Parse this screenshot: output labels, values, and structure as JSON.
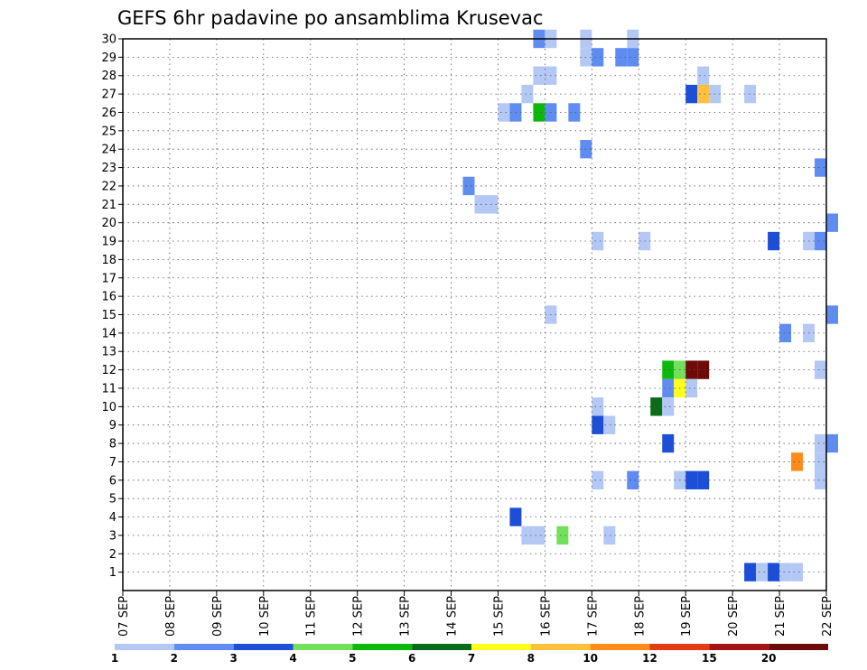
{
  "chart_data": {
    "type": "heatmap",
    "title": "GEFS 6hr padavine po ansamblima Krusevac",
    "xlabel": "",
    "ylabel": "",
    "x_tick_labels": [
      "07 SEP",
      "08 SEP",
      "09 SEP",
      "10 SEP",
      "11 SEP",
      "12 SEP",
      "13 SEP",
      "14 SEP",
      "15 SEP",
      "16 SEP",
      "17 SEP",
      "18 SEP",
      "19 SEP",
      "20 SEP",
      "21 SEP",
      "22 SEP"
    ],
    "y_tick_labels": [
      "1",
      "2",
      "3",
      "4",
      "5",
      "6",
      "7",
      "8",
      "9",
      "10",
      "11",
      "12",
      "13",
      "14",
      "15",
      "16",
      "17",
      "18",
      "19",
      "20",
      "21",
      "22",
      "23",
      "24",
      "25",
      "26",
      "27",
      "28",
      "29",
      "30"
    ],
    "x_range_days": [
      0,
      15
    ],
    "y_range": [
      0,
      30
    ],
    "grid": true,
    "colorbar": {
      "labels": [
        "1",
        "2",
        "3",
        "4",
        "5",
        "6",
        "7",
        "8",
        "10",
        "12",
        "15",
        "20"
      ],
      "colors": [
        "#b4c8f5",
        "#5f8cf0",
        "#1c4ed8",
        "#72e05a",
        "#0bb80b",
        "#0a6b18",
        "#ffff19",
        "#ffc03c",
        "#ff8c1a",
        "#e63c14",
        "#a51414",
        "#6e0a0a"
      ]
    },
    "units_note": "x in days from 07 SEP 00Z (6-hour steps = 0.25), y = ensemble member, c = color class index (0 = 1..2 mm)",
    "cells": [
      {
        "x": 8.75,
        "y": 30,
        "c": 1
      },
      {
        "x": 9.0,
        "y": 30,
        "c": 0
      },
      {
        "x": 9.75,
        "y": 30,
        "c": 0
      },
      {
        "x": 10.75,
        "y": 30,
        "c": 0
      },
      {
        "x": 9.75,
        "y": 29,
        "c": 0
      },
      {
        "x": 10.0,
        "y": 29,
        "c": 1
      },
      {
        "x": 10.5,
        "y": 29,
        "c": 1
      },
      {
        "x": 10.75,
        "y": 29,
        "c": 1
      },
      {
        "x": 8.75,
        "y": 28,
        "c": 0
      },
      {
        "x": 9.0,
        "y": 28,
        "c": 0
      },
      {
        "x": 12.25,
        "y": 28,
        "c": 0
      },
      {
        "x": 8.5,
        "y": 27,
        "c": 0
      },
      {
        "x": 12.0,
        "y": 27,
        "c": 2
      },
      {
        "x": 12.25,
        "y": 27,
        "c": 7
      },
      {
        "x": 12.5,
        "y": 27,
        "c": 0
      },
      {
        "x": 13.25,
        "y": 27,
        "c": 0
      },
      {
        "x": 8.0,
        "y": 26,
        "c": 0
      },
      {
        "x": 8.25,
        "y": 26,
        "c": 1
      },
      {
        "x": 8.75,
        "y": 26,
        "c": 4
      },
      {
        "x": 9.0,
        "y": 26,
        "c": 1
      },
      {
        "x": 9.5,
        "y": 26,
        "c": 1
      },
      {
        "x": 9.75,
        "y": 24,
        "c": 1
      },
      {
        "x": 14.75,
        "y": 23,
        "c": 1
      },
      {
        "x": 7.25,
        "y": 22,
        "c": 1
      },
      {
        "x": 7.5,
        "y": 21,
        "c": 0
      },
      {
        "x": 7.75,
        "y": 21,
        "c": 0
      },
      {
        "x": 15.0,
        "y": 20,
        "c": 1
      },
      {
        "x": 10.0,
        "y": 19,
        "c": 0
      },
      {
        "x": 11.0,
        "y": 19,
        "c": 0
      },
      {
        "x": 13.75,
        "y": 19,
        "c": 2
      },
      {
        "x": 14.5,
        "y": 19,
        "c": 0
      },
      {
        "x": 14.75,
        "y": 19,
        "c": 1
      },
      {
        "x": 9.0,
        "y": 15,
        "c": 0
      },
      {
        "x": 15.0,
        "y": 15,
        "c": 1
      },
      {
        "x": 14.0,
        "y": 14,
        "c": 1
      },
      {
        "x": 14.5,
        "y": 14,
        "c": 0
      },
      {
        "x": 11.5,
        "y": 12,
        "c": 4
      },
      {
        "x": 11.75,
        "y": 12,
        "c": 3
      },
      {
        "x": 12.0,
        "y": 12,
        "c": 11
      },
      {
        "x": 12.25,
        "y": 12,
        "c": 11
      },
      {
        "x": 14.75,
        "y": 12,
        "c": 0
      },
      {
        "x": 11.5,
        "y": 11,
        "c": 1
      },
      {
        "x": 11.75,
        "y": 11,
        "c": 6
      },
      {
        "x": 12.0,
        "y": 11,
        "c": 0
      },
      {
        "x": 10.0,
        "y": 10,
        "c": 0
      },
      {
        "x": 11.25,
        "y": 10,
        "c": 5
      },
      {
        "x": 11.5,
        "y": 10,
        "c": 0
      },
      {
        "x": 10.0,
        "y": 9,
        "c": 2
      },
      {
        "x": 10.25,
        "y": 9,
        "c": 0
      },
      {
        "x": 11.5,
        "y": 8,
        "c": 2
      },
      {
        "x": 14.75,
        "y": 8,
        "c": 0
      },
      {
        "x": 15.0,
        "y": 8,
        "c": 1
      },
      {
        "x": 14.75,
        "y": 7,
        "c": 0
      },
      {
        "x": 14.25,
        "y": 7,
        "c": 8
      },
      {
        "x": 14.75,
        "y": 6,
        "c": 0
      },
      {
        "x": 10.0,
        "y": 6,
        "c": 0
      },
      {
        "x": 10.75,
        "y": 6,
        "c": 1
      },
      {
        "x": 11.75,
        "y": 6,
        "c": 0
      },
      {
        "x": 12.0,
        "y": 6,
        "c": 2
      },
      {
        "x": 12.25,
        "y": 6,
        "c": 2
      },
      {
        "x": 8.25,
        "y": 4,
        "c": 2
      },
      {
        "x": 8.5,
        "y": 3,
        "c": 0
      },
      {
        "x": 8.75,
        "y": 3,
        "c": 0
      },
      {
        "x": 9.25,
        "y": 3,
        "c": 3
      },
      {
        "x": 10.25,
        "y": 3,
        "c": 0
      },
      {
        "x": 13.25,
        "y": 1,
        "c": 2
      },
      {
        "x": 13.5,
        "y": 1,
        "c": 0
      },
      {
        "x": 13.75,
        "y": 1,
        "c": 2
      },
      {
        "x": 14.0,
        "y": 1,
        "c": 0
      },
      {
        "x": 14.25,
        "y": 1,
        "c": 0
      }
    ]
  }
}
